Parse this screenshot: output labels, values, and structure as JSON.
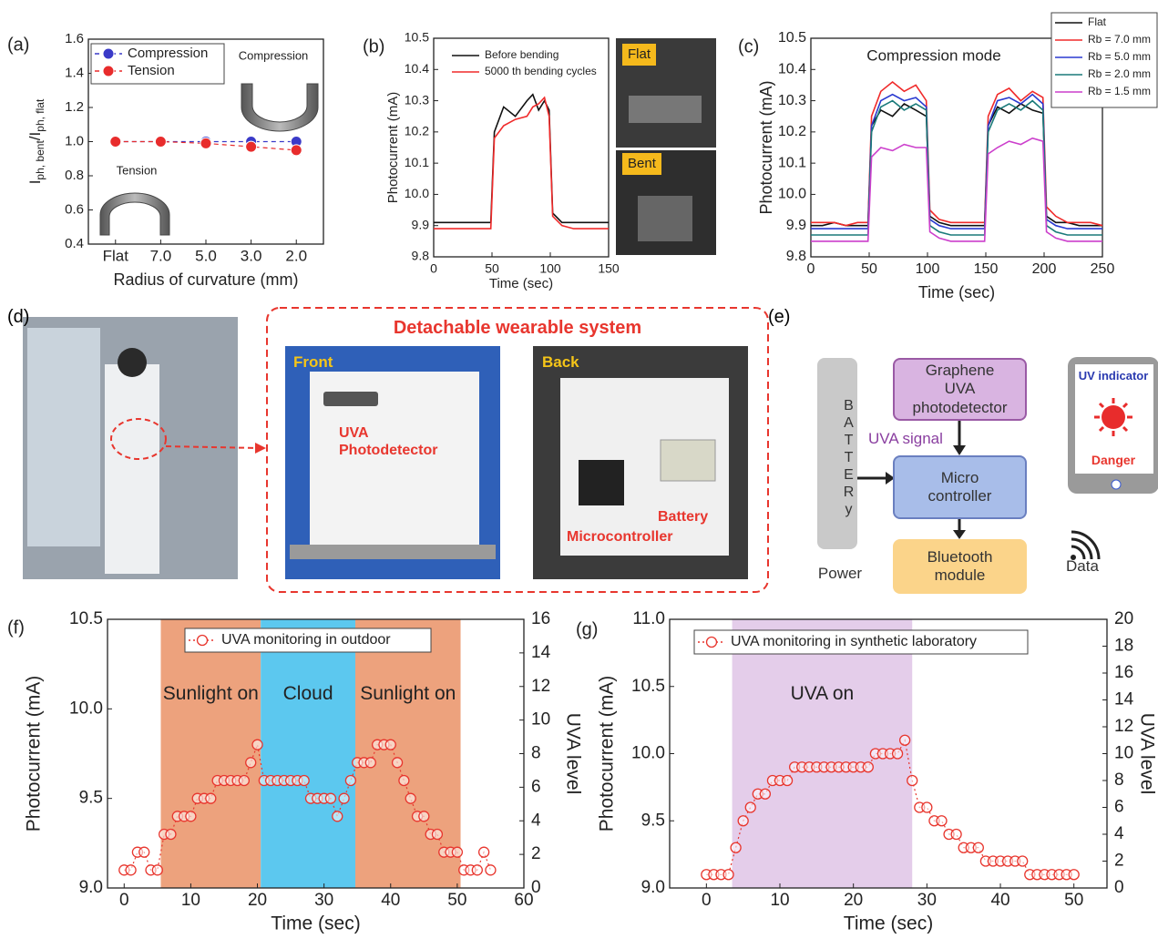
{
  "chart_data": [
    {
      "type": "line",
      "panel": "(a)",
      "categories": [
        "Flat",
        "7.0",
        "5.0",
        "3.0",
        "2.0"
      ],
      "series": [
        {
          "name": "Compression",
          "color": "#3a3ac8",
          "values": [
            1.0,
            1.0,
            1.0,
            1.0,
            1.0
          ]
        },
        {
          "name": "Tension",
          "color": "#e82c2c",
          "values": [
            1.0,
            1.0,
            0.99,
            0.97,
            0.95
          ],
          "errors": [
            0.005,
            0.005,
            0.01,
            0.01,
            0.025
          ]
        }
      ],
      "ylim": [
        0.4,
        1.6
      ],
      "yticks": [
        0.4,
        0.6,
        0.8,
        {
          "value": 1,
          "label": "1.0"
        },
        1.2,
        1.4,
        1.6
      ],
      "x_label": "Radius of curvature (mm)",
      "y_label_parts": [
        "I",
        "ph, bent",
        "/I",
        "ph, flat"
      ],
      "annotations": [
        "Compression",
        "Tension"
      ],
      "line_style": "dashed",
      "markers": "filled",
      "legend": "upper left",
      "legend_frame": true
    },
    {
      "type": "line",
      "panel": "(b)",
      "x": [
        0,
        10,
        20,
        30,
        40,
        49,
        52,
        60,
        70,
        80,
        85,
        90,
        95,
        99,
        102,
        110,
        120,
        130,
        140,
        150
      ],
      "series": [
        {
          "name": "Before bending",
          "color": "#111111",
          "values": [
            9.91,
            9.91,
            9.91,
            9.91,
            9.91,
            9.91,
            10.2,
            10.28,
            10.25,
            10.3,
            10.32,
            10.27,
            10.3,
            10.27,
            9.94,
            9.91,
            9.91,
            9.91,
            9.91,
            9.91
          ]
        },
        {
          "name": "5000 th bending cycles",
          "color": "#f02a2a",
          "values": [
            9.89,
            9.89,
            9.89,
            9.89,
            9.89,
            9.89,
            10.18,
            10.22,
            10.24,
            10.25,
            10.28,
            10.29,
            10.31,
            10.25,
            9.93,
            9.9,
            9.89,
            9.89,
            9.89,
            9.89
          ]
        }
      ],
      "xlim": [
        0,
        150
      ],
      "xticks": [
        0,
        50,
        100,
        150
      ],
      "ylim": [
        9.8,
        10.5
      ],
      "yticks": [
        9.8,
        9.9,
        {
          "value": 10,
          "label": "10.0"
        },
        10.1,
        10.2,
        10.3,
        10.4,
        10.5
      ],
      "x_label": "Time (sec)",
      "y_label": "Photocurrent (mA)",
      "photo_labels": [
        "Flat",
        "Bent"
      ],
      "line_style": "solid",
      "legend": "upper left",
      "legend_frame": false
    },
    {
      "type": "line",
      "panel": "(c)",
      "x": [
        0,
        10,
        20,
        30,
        40,
        49,
        52,
        60,
        70,
        80,
        90,
        99,
        102,
        110,
        120,
        130,
        140,
        149,
        152,
        160,
        170,
        180,
        190,
        199,
        202,
        210,
        220,
        230,
        240,
        250
      ],
      "series": [
        {
          "name": "Flat",
          "color": "#111111",
          "values": [
            9.9,
            9.9,
            9.91,
            9.9,
            9.9,
            9.9,
            10.22,
            10.27,
            10.25,
            10.29,
            10.27,
            10.25,
            9.93,
            9.91,
            9.9,
            9.9,
            9.9,
            9.9,
            10.22,
            10.28,
            10.26,
            10.29,
            10.27,
            10.26,
            9.93,
            9.91,
            9.91,
            9.9,
            9.9,
            9.9
          ]
        },
        {
          "name": "Rb = 7.0 mm",
          "color": "#f02a2a",
          "values": [
            9.91,
            9.91,
            9.91,
            9.9,
            9.91,
            9.91,
            10.25,
            10.33,
            10.36,
            10.33,
            10.35,
            10.3,
            9.95,
            9.92,
            9.91,
            9.91,
            9.91,
            9.91,
            10.25,
            10.32,
            10.34,
            10.3,
            10.33,
            10.31,
            9.96,
            9.93,
            9.91,
            9.91,
            9.91,
            9.9
          ]
        },
        {
          "name": "Rb = 5.0 mm",
          "color": "#2a3ad0",
          "values": [
            9.89,
            9.89,
            9.89,
            9.89,
            9.89,
            9.89,
            10.22,
            10.3,
            10.32,
            10.3,
            10.31,
            10.28,
            9.92,
            9.9,
            9.89,
            9.89,
            9.89,
            9.89,
            10.22,
            10.3,
            10.31,
            10.29,
            10.32,
            10.29,
            9.92,
            9.9,
            9.89,
            9.89,
            9.89,
            9.89
          ]
        },
        {
          "name": "Rb = 2.0 mm",
          "color": "#1a7a7a",
          "values": [
            9.87,
            9.87,
            9.87,
            9.87,
            9.87,
            9.87,
            10.2,
            10.28,
            10.3,
            10.27,
            10.29,
            10.27,
            9.9,
            9.88,
            9.87,
            9.87,
            9.87,
            9.87,
            10.2,
            10.27,
            10.29,
            10.27,
            10.3,
            10.27,
            9.9,
            9.88,
            9.87,
            9.87,
            9.87,
            9.87
          ]
        },
        {
          "name": "Rb = 1.5 mm",
          "color": "#cc3fcc",
          "values": [
            9.85,
            9.85,
            9.85,
            9.85,
            9.85,
            9.85,
            10.12,
            10.15,
            10.14,
            10.16,
            10.15,
            10.15,
            9.88,
            9.86,
            9.85,
            9.85,
            9.85,
            9.85,
            10.13,
            10.15,
            10.17,
            10.16,
            10.18,
            10.17,
            9.88,
            9.86,
            9.85,
            9.85,
            9.85,
            9.85
          ]
        }
      ],
      "xlim": [
        0,
        250
      ],
      "xticks": [
        0,
        50,
        100,
        150,
        200,
        250
      ],
      "ylim": [
        9.8,
        10.5
      ],
      "yticks": [
        9.8,
        9.9,
        {
          "value": 10,
          "label": "10.0"
        },
        10.1,
        10.2,
        10.3,
        10.4,
        10.5
      ],
      "x_label": "Time (sec)",
      "y_label": "Photocurrent (mA)",
      "annotations": [
        "Compression mode"
      ],
      "line_style": "solid",
      "legend": "upper right outside",
      "legend_frame": true
    },
    {
      "type": "line",
      "panel": "(f)",
      "x": [
        0,
        1,
        2,
        3,
        4,
        5,
        6,
        7,
        8,
        9,
        10,
        11,
        12,
        13,
        14,
        15,
        16,
        17,
        18,
        19,
        20,
        21,
        22,
        23,
        24,
        25,
        26,
        27,
        28,
        29,
        30,
        31,
        32,
        33,
        34,
        35,
        36,
        37,
        38,
        39,
        40,
        41,
        42,
        43,
        44,
        45,
        46,
        47,
        48,
        49,
        50,
        51,
        52,
        53,
        54,
        55
      ],
      "series": [
        {
          "name": "UVA monitoring in outdoor",
          "color": "#e8362e",
          "values": [
            9.1,
            9.1,
            9.2,
            9.2,
            9.1,
            9.1,
            9.3,
            9.3,
            9.4,
            9.4,
            9.4,
            9.5,
            9.5,
            9.5,
            9.6,
            9.6,
            9.6,
            9.6,
            9.6,
            9.7,
            9.8,
            9.6,
            9.6,
            9.6,
            9.6,
            9.6,
            9.6,
            9.6,
            9.5,
            9.5,
            9.5,
            9.5,
            9.4,
            9.5,
            9.6,
            9.7,
            9.7,
            9.7,
            9.8,
            9.8,
            9.8,
            9.7,
            9.6,
            9.5,
            9.4,
            9.4,
            9.3,
            9.3,
            9.2,
            9.2,
            9.2,
            9.1,
            9.1,
            9.1,
            9.2,
            9.1
          ]
        }
      ],
      "regions": [
        {
          "label": "Sunlight on",
          "start": 5.5,
          "end": 20.5,
          "color": "#eda27d"
        },
        {
          "label": "Cloud",
          "start": 20.5,
          "end": 34.7,
          "color": "#5cc8ef"
        },
        {
          "label": "Sunlight on",
          "start": 34.7,
          "end": 50.5,
          "color": "#eda27d"
        }
      ],
      "xlim": [
        -2.5,
        60
      ],
      "xticks": [
        0,
        10,
        20,
        30,
        40,
        50,
        60
      ],
      "ylim": [
        9,
        10.5
      ],
      "yticks": [
        {
          "value": 9,
          "label": "9.0"
        },
        9.5,
        {
          "value": 10,
          "label": "10.0"
        },
        10.5
      ],
      "y2lim": [
        0,
        16
      ],
      "y2ticks": [
        0,
        2,
        4,
        6,
        8,
        10,
        12,
        14,
        16
      ],
      "x_label": "Time (sec)",
      "y_label": "Photocurrent (mA)",
      "y2_label": "UVA level",
      "line_style": "dotted",
      "markers": "hollow",
      "legend": "upper left",
      "legend_frame": true
    },
    {
      "type": "line",
      "panel": "(g)",
      "x": [
        0,
        1,
        2,
        3,
        4,
        5,
        6,
        7,
        8,
        9,
        10,
        11,
        12,
        13,
        14,
        15,
        16,
        17,
        18,
        19,
        20,
        21,
        22,
        23,
        24,
        25,
        26,
        27,
        28,
        29,
        30,
        31,
        32,
        33,
        34,
        35,
        36,
        37,
        38,
        39,
        40,
        41,
        42,
        43,
        44,
        45,
        46,
        47,
        48,
        49,
        50
      ],
      "series": [
        {
          "name": "UVA monitoring in synthetic laboratory",
          "color": "#e8362e",
          "values": [
            9.1,
            9.1,
            9.1,
            9.1,
            9.3,
            9.5,
            9.6,
            9.7,
            9.7,
            9.8,
            9.8,
            9.8,
            9.9,
            9.9,
            9.9,
            9.9,
            9.9,
            9.9,
            9.9,
            9.9,
            9.9,
            9.9,
            9.9,
            10.0,
            10.0,
            10.0,
            10.0,
            10.1,
            9.8,
            9.6,
            9.6,
            9.5,
            9.5,
            9.4,
            9.4,
            9.3,
            9.3,
            9.3,
            9.2,
            9.2,
            9.2,
            9.2,
            9.2,
            9.2,
            9.1,
            9.1,
            9.1,
            9.1,
            9.1,
            9.1,
            9.1
          ]
        }
      ],
      "regions": [
        {
          "label": "UVA on",
          "start": 3.5,
          "end": 28,
          "color": "#e4cdea"
        }
      ],
      "xlim": [
        -5,
        54.5
      ],
      "xticks": [
        0,
        10,
        20,
        30,
        40,
        50
      ],
      "ylim": [
        9,
        11
      ],
      "yticks": [
        {
          "value": 9,
          "label": "9.0"
        },
        9.5,
        {
          "value": 10,
          "label": "10.0"
        },
        10.5,
        {
          "value": 11,
          "label": "11.0"
        }
      ],
      "y2lim": [
        0,
        20
      ],
      "y2ticks": [
        0,
        2,
        4,
        6,
        8,
        10,
        12,
        14,
        16,
        18,
        20
      ],
      "x_label": "Time (sec)",
      "y_label": "Photocurrent (mA)",
      "y2_label": "UVA level",
      "line_style": "dotted",
      "markers": "hollow",
      "legend": "upper left",
      "legend_frame": true
    }
  ],
  "photo_panel": {
    "panel": "(d)",
    "title": "Detachable wearable system",
    "front": {
      "label": "Front",
      "caption": "UVA Photodetector"
    },
    "back": {
      "label": "Back",
      "captions": [
        "Battery",
        "Microcontroller"
      ]
    }
  },
  "block_diagram": {
    "panel": "(e)",
    "battery": "BATTERy",
    "power": "Power",
    "detector": "Graphene UVA photodetector",
    "signal": "UVA signal",
    "controller": "Micro controller",
    "bluetooth": "Bluetooth module",
    "data": "Data",
    "indicator": "UV indicator",
    "alert": "Danger"
  }
}
